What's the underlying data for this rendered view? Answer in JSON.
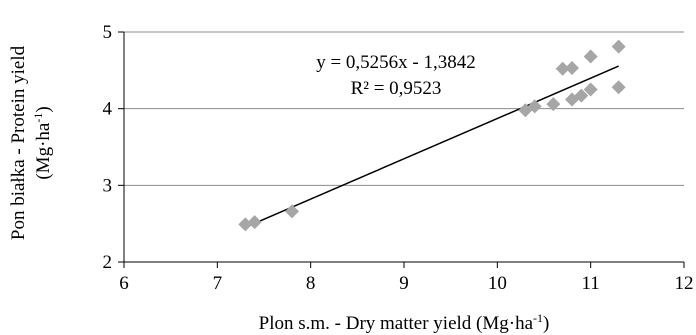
{
  "chart_data": {
    "type": "scatter",
    "xlabel": "Plon s.m. - Dry matter yield  (Mg·ha",
    "xlabel_sup": "-1",
    "xlabel_end": ")",
    "ylabel_line1": "Pon białka - Protein yield",
    "ylabel_line2": "(Mg·ha",
    "ylabel_sup": "-1",
    "ylabel_end": ")",
    "xlim": [
      6,
      12
    ],
    "ylim": [
      2,
      5
    ],
    "x_ticks": [
      "6",
      "7",
      "8",
      "9",
      "10",
      "11",
      "12"
    ],
    "y_ticks": [
      "2",
      "3",
      "4",
      "5"
    ],
    "grid": "horizontal",
    "marker": "diamond",
    "marker_color": "#a6a6a6",
    "line_color": "#000000",
    "points": [
      {
        "x": 7.3,
        "y": 2.49
      },
      {
        "x": 7.4,
        "y": 2.52
      },
      {
        "x": 7.8,
        "y": 2.66
      },
      {
        "x": 10.3,
        "y": 3.98
      },
      {
        "x": 10.4,
        "y": 4.03
      },
      {
        "x": 10.6,
        "y": 4.06
      },
      {
        "x": 10.7,
        "y": 4.52
      },
      {
        "x": 10.8,
        "y": 4.53
      },
      {
        "x": 10.8,
        "y": 4.12
      },
      {
        "x": 10.9,
        "y": 4.17
      },
      {
        "x": 11.0,
        "y": 4.25
      },
      {
        "x": 11.0,
        "y": 4.68
      },
      {
        "x": 11.3,
        "y": 4.81
      },
      {
        "x": 11.3,
        "y": 4.28
      }
    ],
    "trendline": {
      "slope": 0.5256,
      "intercept": -1.3842,
      "x_range": [
        7.3,
        11.3
      ]
    },
    "equation": "y = 0,5256x - 1,3842",
    "r_squared": "R² = 0,9523"
  }
}
